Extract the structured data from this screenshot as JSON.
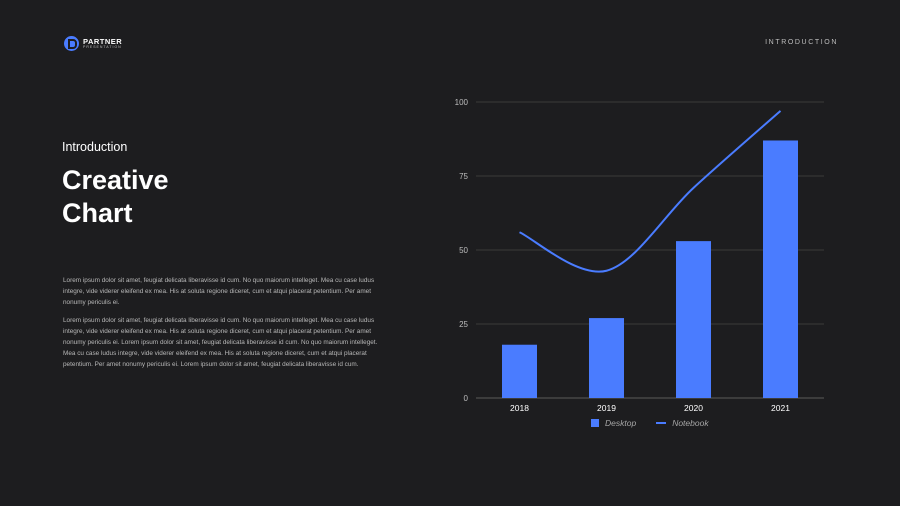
{
  "brand": {
    "name": "PARTNER",
    "tagline": "PRESENTATION",
    "accent": "#4a7cff"
  },
  "header": {
    "section": "INTRODUCTION"
  },
  "hero": {
    "eyebrow": "Introduction",
    "title_line1": "Creative",
    "title_line2": "Chart"
  },
  "body": {
    "paragraph1": "Lorem ipsum dolor sit amet, feugiat delicata liberavisse id cum. No quo maiorum intelleget. Mea cu case ludus integre, vide viderer eleifend ex mea. His at soluta regione diceret, cum et atqui placerat petentium. Per amet nonumy periculis ei.",
    "paragraph2": "Lorem ipsum dolor sit amet, feugiat delicata liberavisse id cum. No quo maiorum intelleget. Mea cu case ludus integre, vide viderer eleifend ex mea. His at soluta regione diceret, cum et atqui placerat petentium. Per amet nonumy periculis ei. Lorem ipsum dolor sit amet, feugiat delicata liberavisse id cum. No quo maiorum intelleget. Mea cu case ludus integre, vide viderer eleifend ex mea. His at soluta regione diceret, cum et atqui placerat petentium. Per amet nonumy periculis ei. Lorem ipsum dolor sit amet, feugiat delicata liberavisse id cum."
  },
  "chart_data": {
    "type": "bar",
    "categories": [
      "2018",
      "2019",
      "2020",
      "2021"
    ],
    "series": [
      {
        "name": "Desktop",
        "type": "bar",
        "values": [
          18,
          27,
          53,
          87
        ],
        "color": "#4a7cff"
      },
      {
        "name": "Notebook",
        "type": "line",
        "values": [
          56,
          43,
          71,
          97
        ],
        "color": "#4a7cff"
      }
    ],
    "ylim": [
      0,
      100
    ],
    "yticks": [
      0,
      25,
      50,
      75,
      100
    ],
    "grid": true,
    "legend_position": "bottom"
  }
}
